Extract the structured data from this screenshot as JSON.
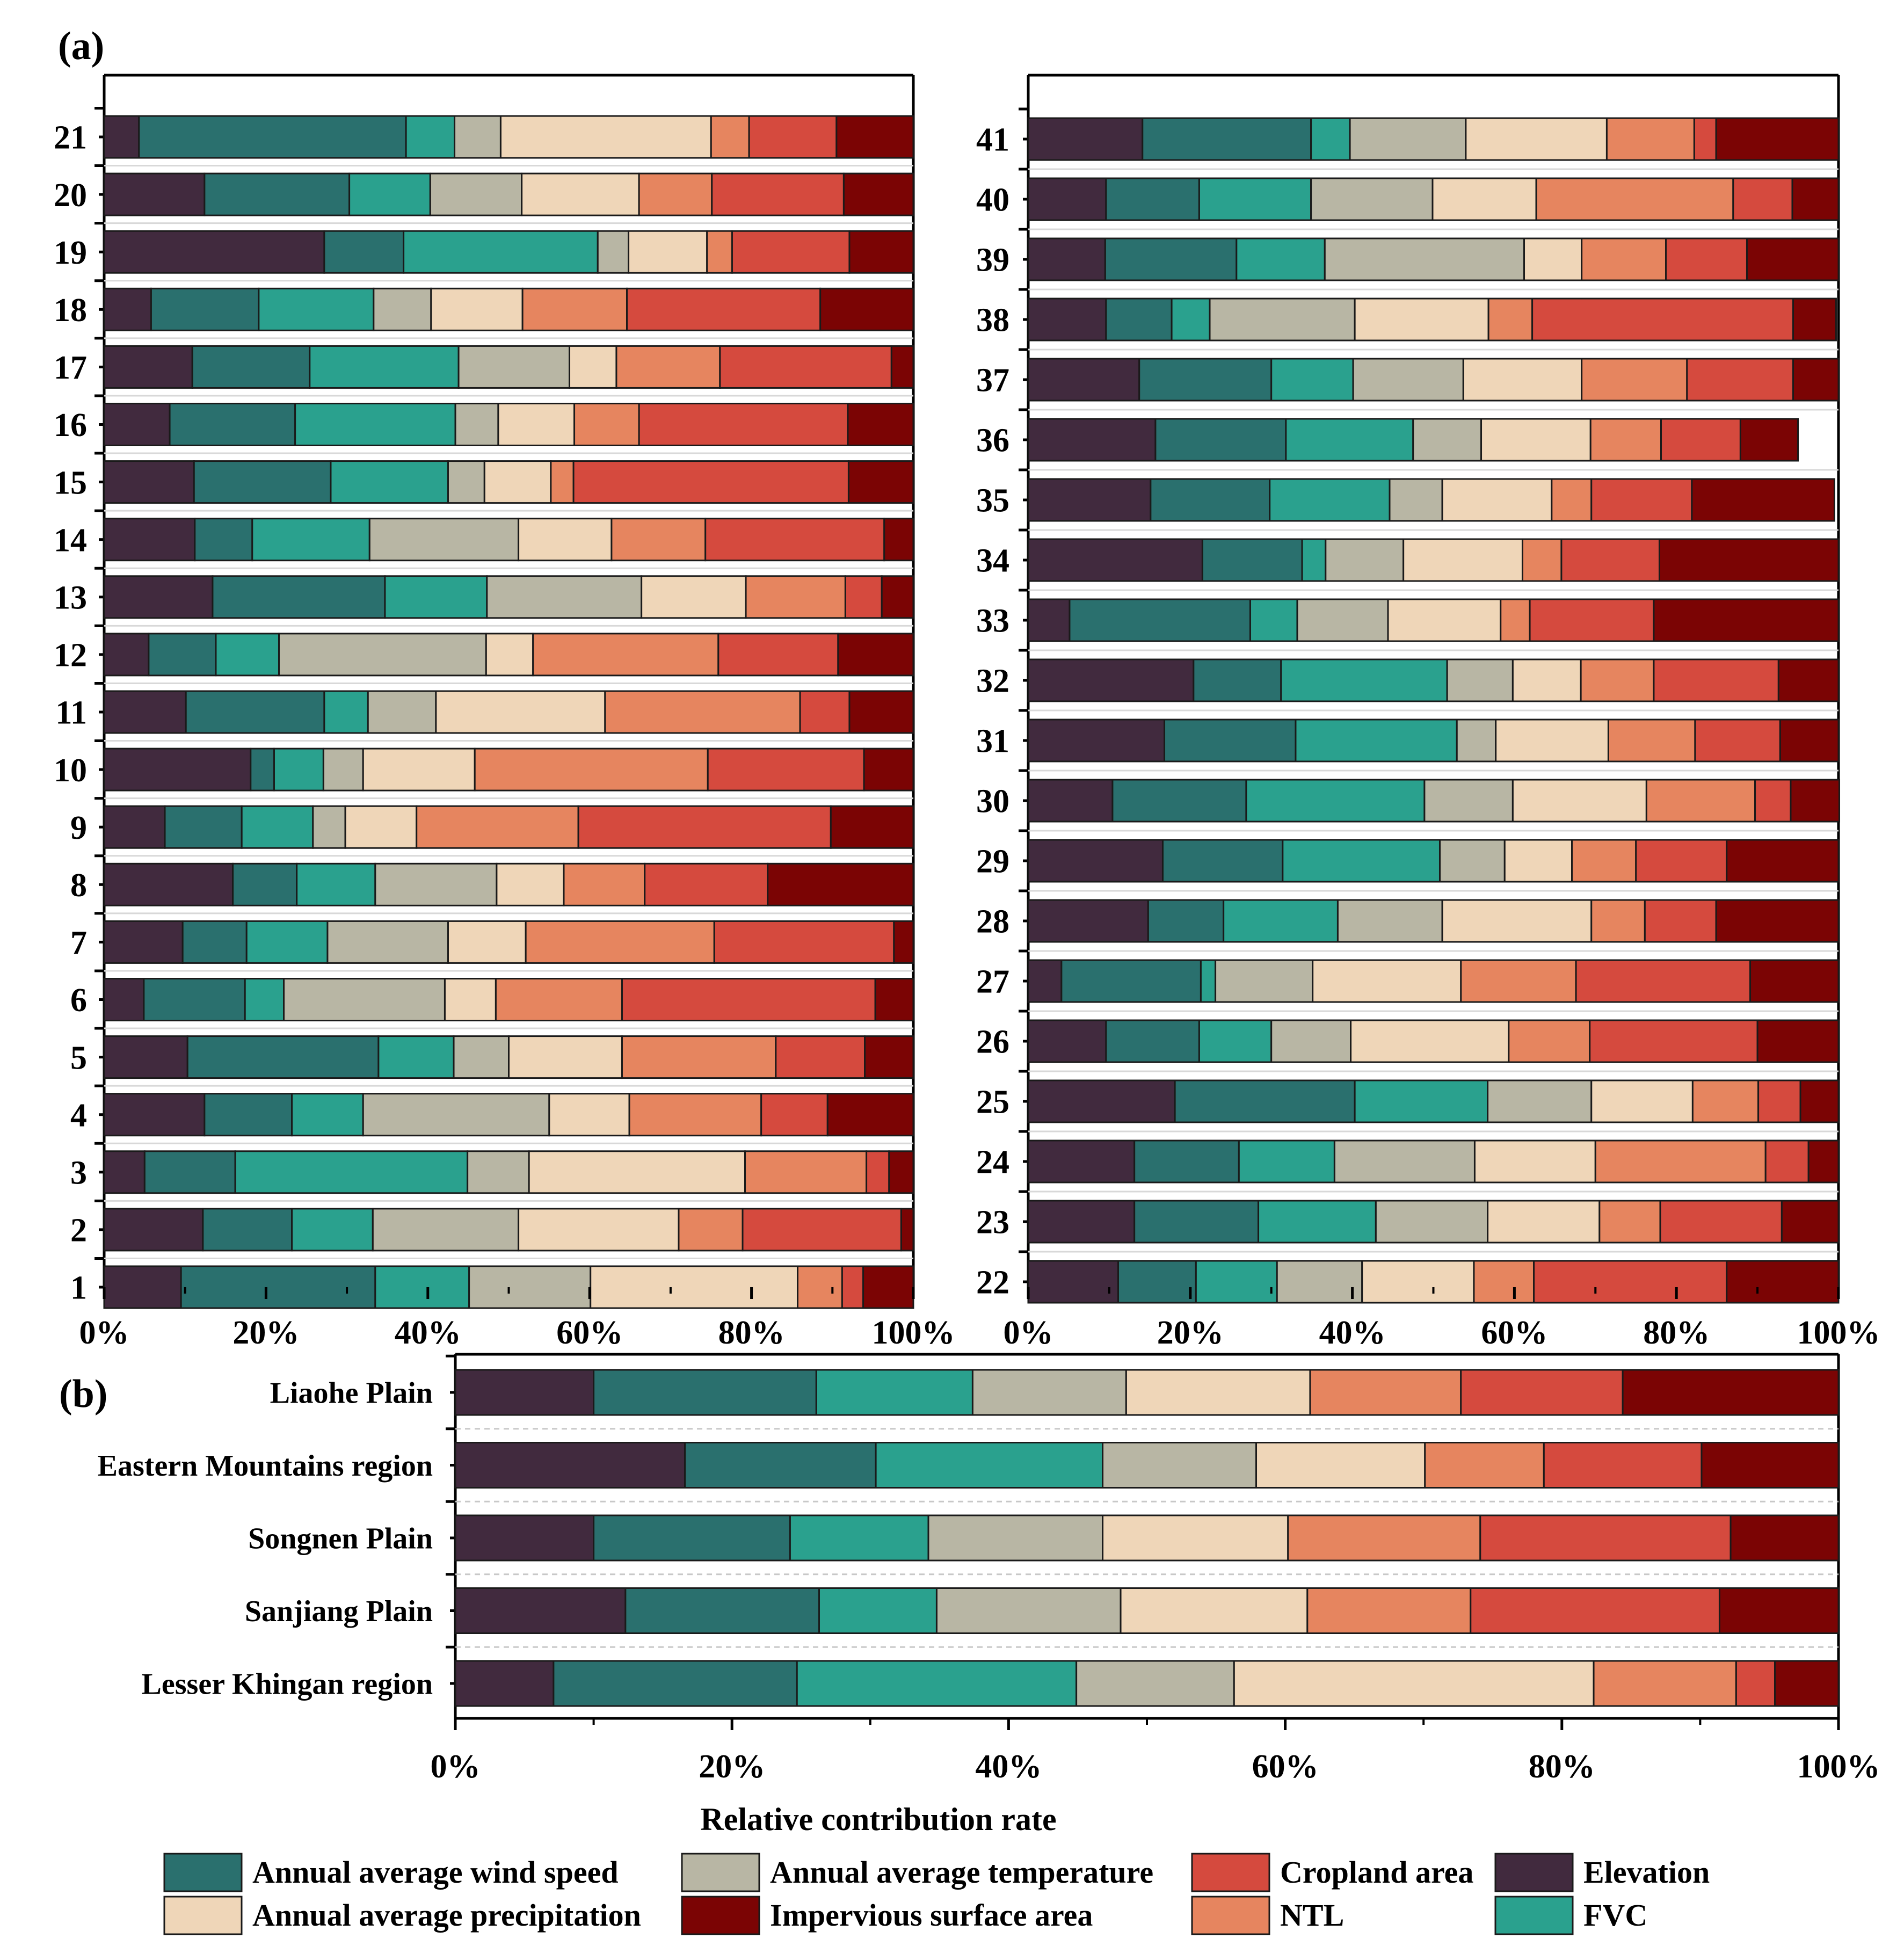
{
  "colors": {
    "Elevation": "#412a3e",
    "Annual average wind speed": "#2a706e",
    "FVC": "#2aa18e",
    "Annual average temperature": "#b8b6a4",
    "Annual average precipitation": "#efd6b8",
    "NTL": "#e6855f",
    "Cropland area": "#d54a3e",
    "Impervious surface area": "#7b0404"
  },
  "legend": {
    "entries": [
      "Annual average wind speed",
      "Annual average temperature",
      "Cropland area",
      "Elevation",
      "Annual average precipitation",
      "Impervious surface area",
      "NTL",
      "FVC"
    ]
  },
  "chart_data": [
    {
      "panel": "(a)",
      "type": "bar",
      "orientation": "horizontal",
      "stacked": true,
      "xlabel": "",
      "xlim": [
        0,
        100
      ],
      "x_ticks": [
        "0%",
        "20%",
        "40%",
        "60%",
        "80%",
        "100%"
      ],
      "stack_order": [
        "Elevation",
        "Annual average wind speed",
        "FVC",
        "Annual average temperature",
        "Annual average precipitation",
        "NTL",
        "Cropland area",
        "Impervious surface area"
      ],
      "categories": [
        "1",
        "2",
        "3",
        "4",
        "5",
        "6",
        "7",
        "8",
        "9",
        "10",
        "11",
        "12",
        "13",
        "14",
        "15",
        "16",
        "17",
        "18",
        "19",
        "20",
        "21"
      ],
      "series": [
        {
          "name": "Elevation",
          "values": [
            9.5,
            12.2,
            5.0,
            12.4,
            10.3,
            4.9,
            9.7,
            15.9,
            7.5,
            18.1,
            10.1,
            5.5,
            13.4,
            11.2,
            11.1,
            8.1,
            10.9,
            5.8,
            27.2,
            12.4,
            4.3
          ]
        },
        {
          "name": "Annual average wind speed",
          "values": [
            24.0,
            11.0,
            11.2,
            10.8,
            23.6,
            12.5,
            7.9,
            7.9,
            9.5,
            2.9,
            17.1,
            8.3,
            21.3,
            7.1,
            16.9,
            15.5,
            14.5,
            13.3,
            9.8,
            17.9,
            33.0
          ]
        },
        {
          "name": "FVC",
          "values": [
            11.6,
            10.0,
            28.7,
            8.8,
            9.3,
            4.8,
            10.0,
            9.7,
            8.8,
            6.1,
            5.4,
            7.8,
            12.6,
            14.5,
            14.5,
            19.8,
            18.4,
            14.2,
            24.0,
            10.0,
            6.0
          ]
        },
        {
          "name": "Annual average temperature",
          "values": [
            15.0,
            18.0,
            7.6,
            23.0,
            6.8,
            19.9,
            14.9,
            15.0,
            4.0,
            4.9,
            8.4,
            25.6,
            19.1,
            18.4,
            4.5,
            5.3,
            13.7,
            7.1,
            3.8,
            11.3,
            5.7
          ]
        },
        {
          "name": "Annual average precipitation",
          "values": [
            25.6,
            19.8,
            26.7,
            9.9,
            14.0,
            6.3,
            9.6,
            8.3,
            8.8,
            13.8,
            20.9,
            5.8,
            12.9,
            11.5,
            8.2,
            9.4,
            5.8,
            11.3,
            9.7,
            14.5,
            26.0
          ]
        },
        {
          "name": "NTL",
          "values": [
            5.5,
            7.9,
            15.0,
            16.3,
            19.0,
            15.6,
            23.3,
            10.0,
            20.0,
            28.8,
            24.1,
            22.9,
            12.3,
            11.6,
            2.8,
            8.0,
            12.8,
            12.9,
            3.1,
            9.0,
            4.7
          ]
        },
        {
          "name": "Cropland area",
          "values": [
            2.6,
            19.6,
            2.8,
            8.2,
            11.0,
            31.3,
            22.2,
            15.2,
            31.2,
            19.3,
            6.1,
            14.8,
            4.5,
            22.1,
            34.0,
            25.8,
            21.2,
            23.9,
            14.5,
            16.3,
            10.8
          ]
        },
        {
          "name": "Impervious surface area",
          "values": [
            6.2,
            1.5,
            3.0,
            10.6,
            6.0,
            4.7,
            2.4,
            18.0,
            10.2,
            6.1,
            7.9,
            9.3,
            3.9,
            3.6,
            8.0,
            8.1,
            2.7,
            11.5,
            7.9,
            8.6,
            9.5
          ]
        }
      ]
    },
    {
      "panel": "(a)",
      "type": "bar",
      "orientation": "horizontal",
      "stacked": true,
      "xlabel": "",
      "xlim": [
        0,
        100
      ],
      "x_ticks": [
        "0%",
        "20%",
        "40%",
        "60%",
        "80%",
        "100%"
      ],
      "stack_order": [
        "Elevation",
        "Annual average wind speed",
        "FVC",
        "Annual average temperature",
        "Annual average precipitation",
        "NTL",
        "Cropland area",
        "Impervious surface area"
      ],
      "categories": [
        "22",
        "23",
        "24",
        "25",
        "26",
        "27",
        "28",
        "29",
        "30",
        "31",
        "32",
        "33",
        "34",
        "35",
        "36",
        "37",
        "38",
        "39",
        "40",
        "41"
      ],
      "series": [
        {
          "name": "Elevation",
          "values": [
            11.1,
            13.1,
            13.1,
            18.1,
            9.6,
            4.1,
            14.8,
            16.6,
            10.4,
            16.8,
            20.4,
            5.1,
            21.5,
            15.1,
            15.7,
            13.7,
            9.6,
            9.5,
            9.6,
            14.1
          ]
        },
        {
          "name": "Annual average wind speed",
          "values": [
            9.6,
            15.3,
            12.9,
            22.2,
            11.5,
            17.2,
            9.3,
            14.8,
            16.5,
            16.2,
            10.8,
            22.3,
            12.3,
            14.7,
            16.1,
            16.3,
            8.1,
            16.2,
            11.5,
            20.8
          ]
        },
        {
          "name": "FVC",
          "values": [
            10.0,
            14.5,
            11.8,
            16.4,
            8.9,
            1.8,
            14.1,
            19.4,
            22.0,
            19.9,
            20.5,
            5.8,
            2.9,
            14.8,
            15.7,
            10.1,
            4.7,
            10.9,
            13.8,
            4.8
          ]
        },
        {
          "name": "Annual average temperature",
          "values": [
            10.5,
            13.8,
            17.3,
            12.8,
            9.8,
            12.0,
            12.9,
            8.0,
            10.9,
            4.8,
            8.1,
            11.2,
            9.6,
            6.5,
            8.4,
            13.6,
            17.9,
            24.6,
            15.0,
            14.3
          ]
        },
        {
          "name": "Annual average precipitation",
          "values": [
            13.8,
            13.8,
            14.9,
            12.5,
            19.5,
            18.3,
            18.4,
            8.3,
            16.5,
            13.9,
            8.4,
            13.9,
            14.7,
            13.5,
            13.5,
            14.6,
            16.5,
            7.1,
            12.8,
            17.4
          ]
        },
        {
          "name": "NTL",
          "values": [
            7.4,
            7.5,
            21.0,
            8.1,
            10.0,
            14.2,
            6.6,
            7.9,
            13.4,
            10.7,
            9.0,
            3.6,
            4.8,
            4.9,
            8.7,
            13.0,
            5.4,
            10.4,
            24.3,
            10.8
          ]
        },
        {
          "name": "Cropland area",
          "values": [
            23.8,
            15.0,
            5.3,
            5.2,
            20.7,
            21.5,
            8.8,
            11.2,
            4.4,
            10.5,
            15.4,
            15.3,
            12.1,
            12.4,
            9.8,
            13.1,
            32.2,
            10.0,
            7.3,
            2.7
          ]
        },
        {
          "name": "Impervious surface area",
          "values": [
            13.8,
            7.0,
            3.7,
            4.7,
            10.0,
            10.9,
            15.1,
            13.8,
            6.0,
            7.2,
            7.4,
            22.8,
            22.1,
            17.6,
            7.1,
            5.6,
            5.3,
            11.3,
            5.7,
            15.1
          ]
        }
      ]
    },
    {
      "panel": "(b)",
      "type": "bar",
      "orientation": "horizontal",
      "stacked": true,
      "xlabel": "Relative contribution rate",
      "xlim": [
        0,
        100
      ],
      "x_ticks": [
        "0%",
        "20%",
        "40%",
        "60%",
        "80%",
        "100%"
      ],
      "stack_order": [
        "Elevation",
        "Annual average wind speed",
        "FVC",
        "Annual average temperature",
        "Annual average precipitation",
        "NTL",
        "Cropland area",
        "Impervious surface area"
      ],
      "categories": [
        "Lesser Khingan region",
        "Sanjiang Plain",
        "Songnen Plain",
        "Eastern Mountains region",
        "Liaohe Plain"
      ],
      "series": [
        {
          "name": "Elevation",
          "values": [
            7.1,
            12.3,
            10.0,
            16.6,
            10.0
          ]
        },
        {
          "name": "Annual average wind speed",
          "values": [
            17.6,
            14.0,
            14.2,
            13.8,
            16.1
          ]
        },
        {
          "name": "FVC",
          "values": [
            20.2,
            8.5,
            10.0,
            16.4,
            11.3
          ]
        },
        {
          "name": "Annual average temperature",
          "values": [
            11.4,
            13.3,
            12.6,
            11.1,
            11.1
          ]
        },
        {
          "name": "Annual average precipitation",
          "values": [
            26.0,
            13.5,
            13.4,
            12.2,
            13.3
          ]
        },
        {
          "name": "NTL",
          "values": [
            10.3,
            11.8,
            13.9,
            8.6,
            10.9
          ]
        },
        {
          "name": "Cropland area",
          "values": [
            2.8,
            18.0,
            18.1,
            11.4,
            11.7
          ]
        },
        {
          "name": "Impervious surface area",
          "values": [
            4.6,
            8.6,
            7.8,
            9.9,
            15.6
          ]
        }
      ]
    }
  ],
  "labels": {
    "panel_a": "(a)",
    "panel_b": "(b)"
  }
}
